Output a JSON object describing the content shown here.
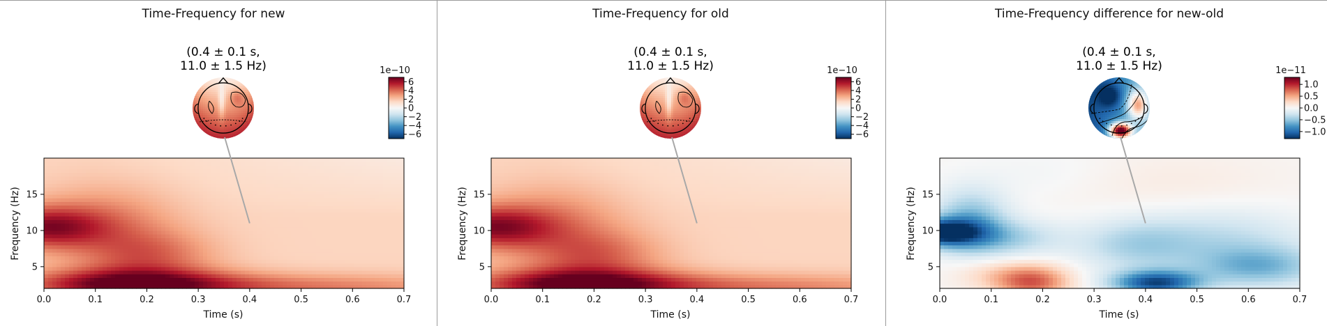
{
  "colors": {
    "deep_red": "#67001f",
    "red": "#b2182b",
    "mid_red": "#d6604d",
    "light_red": "#f4a582",
    "pale_red": "#fddbc7",
    "white": "#f7f7f7",
    "pale_blue": "#d1e5f0",
    "light_blue": "#92c5de",
    "mid_blue": "#4393c3",
    "blue": "#2166ac",
    "deep_blue": "#053061",
    "axis": "#000000",
    "connector": "#a8a8a8",
    "separator": "#9a9a9a"
  },
  "chart_data": [
    {
      "type": "heatmap",
      "title": "Time-Frequency for new",
      "topomap_title": "(0.4 ± 0.1 s,\n11.0 ± 1.5 Hz)",
      "xlabel": "Time (s)",
      "ylabel": "Frequency (Hz)",
      "xlim": [
        0.0,
        0.7
      ],
      "ylim": [
        2,
        20
      ],
      "x_ticks": [
        "0.0",
        "0.1",
        "0.2",
        "0.3",
        "0.4",
        "0.5",
        "0.6",
        "0.7"
      ],
      "y_ticks": [
        "5",
        "10",
        "15"
      ],
      "colorbar": {
        "multiplier": "1e−10",
        "ticks": [
          "6",
          "4",
          "2",
          "0",
          "−2",
          "−4",
          "−6"
        ],
        "range": [
          -7,
          7
        ]
      },
      "annotation_point": {
        "time": 0.4,
        "frequency": 11.0
      },
      "topomap_pattern": "positive",
      "features": [
        {
          "time": 0.0,
          "frequency": 10.5,
          "value": 0.8
        },
        {
          "time": 0.17,
          "frequency": 2.5,
          "value": 1.0
        }
      ]
    },
    {
      "type": "heatmap",
      "title": "Time-Frequency for old",
      "topomap_title": "(0.4 ± 0.1 s,\n11.0 ± 1.5 Hz)",
      "xlabel": "Time (s)",
      "ylabel": "Frequency (Hz)",
      "xlim": [
        0.0,
        0.7
      ],
      "ylim": [
        2,
        20
      ],
      "x_ticks": [
        "0.0",
        "0.1",
        "0.2",
        "0.3",
        "0.4",
        "0.5",
        "0.6",
        "0.7"
      ],
      "y_ticks": [
        "5",
        "10",
        "15"
      ],
      "colorbar": {
        "multiplier": "1e−10",
        "ticks": [
          "6",
          "4",
          "2",
          "0",
          "−2",
          "−4",
          "−6"
        ],
        "range": [
          -7,
          7
        ]
      },
      "annotation_point": {
        "time": 0.4,
        "frequency": 11.0
      },
      "topomap_pattern": "positive",
      "features": [
        {
          "time": 0.0,
          "frequency": 10.5,
          "value": 0.8
        },
        {
          "time": 0.17,
          "frequency": 2.5,
          "value": 1.0
        }
      ]
    },
    {
      "type": "heatmap",
      "title": "Time-Frequency difference for new-old",
      "topomap_title": "(0.4 ± 0.1 s,\n11.0 ± 1.5 Hz)",
      "xlabel": "Time (s)",
      "ylabel": "Frequency (Hz)",
      "xlim": [
        0.0,
        0.7
      ],
      "ylim": [
        2,
        20
      ],
      "x_ticks": [
        "0.0",
        "0.1",
        "0.2",
        "0.3",
        "0.4",
        "0.5",
        "0.6",
        "0.7"
      ],
      "y_ticks": [
        "5",
        "10",
        "15"
      ],
      "colorbar": {
        "multiplier": "1e−11",
        "ticks": [
          "1.0",
          "0.5",
          "0.0",
          "−0.5",
          "−1.0"
        ],
        "range": [
          -1.3,
          1.3
        ]
      },
      "annotation_point": {
        "time": 0.4,
        "frequency": 11.0
      },
      "topomap_pattern": "difference",
      "features": [
        {
          "time": 0.0,
          "frequency": 9.8,
          "value": -0.95
        },
        {
          "time": 0.18,
          "frequency": 3.0,
          "value": 0.6
        },
        {
          "time": 0.42,
          "frequency": 2.8,
          "value": -0.9
        },
        {
          "time": 0.62,
          "frequency": 5.0,
          "value": -0.45
        }
      ]
    }
  ]
}
